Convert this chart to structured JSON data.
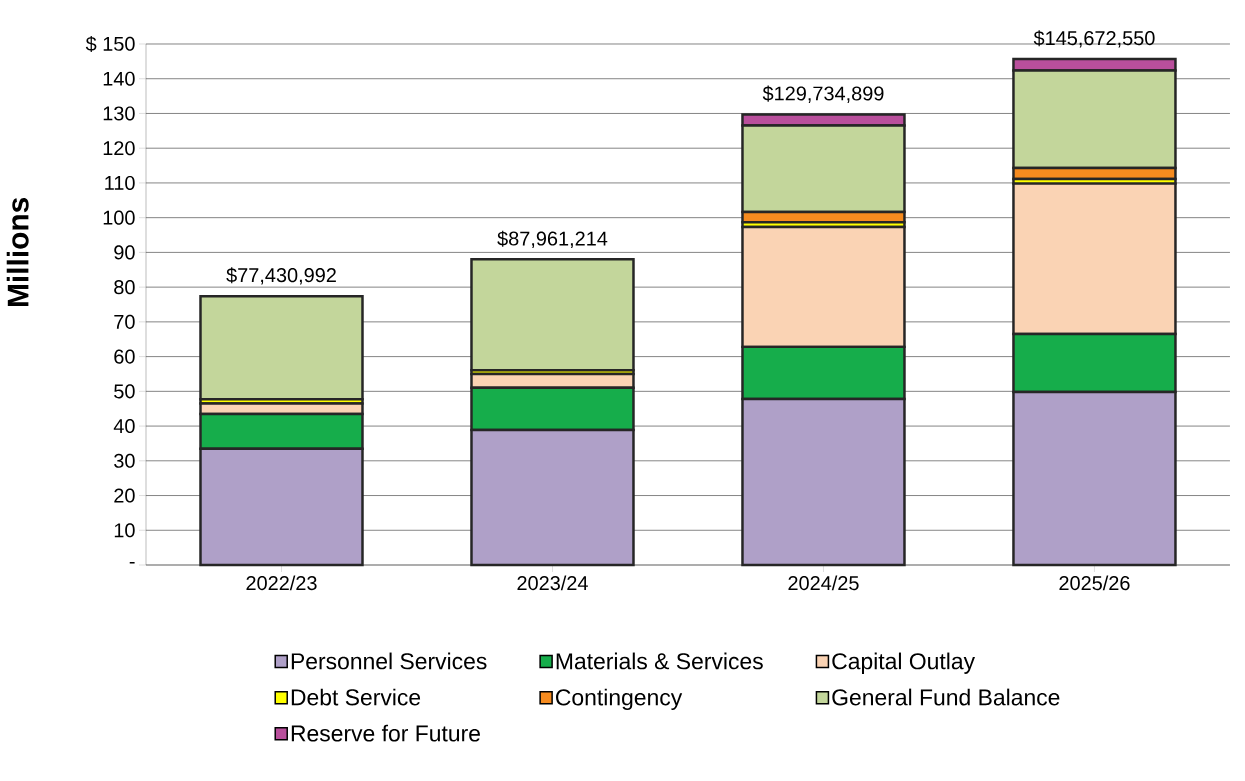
{
  "chart_data": {
    "type": "bar",
    "stacked": true,
    "ylabel": "Millions",
    "categories": [
      "2022/23",
      "2023/24",
      "2024/25",
      "2025/26"
    ],
    "series": [
      {
        "name": "Personnel Services",
        "color": "#afa0c8",
        "values": [
          33.5,
          38.9,
          47.8,
          49.8
        ]
      },
      {
        "name": "Materials & Services",
        "color": "#16ad4b",
        "values": [
          10.0,
          12.1,
          15.0,
          16.7
        ]
      },
      {
        "name": "Capital Outlay",
        "color": "#fad3b4",
        "values": [
          3.0,
          4.0,
          34.5,
          43.3
        ]
      },
      {
        "name": "Debt Service",
        "color": "#ffff00",
        "values": [
          1.2,
          1.1,
          1.4,
          1.3
        ]
      },
      {
        "name": "Contingency",
        "color": "#f68b1f",
        "values": [
          null,
          null,
          2.9,
          3.2
        ]
      },
      {
        "name": "General Fund Balance",
        "color": "#c3d69b",
        "values": [
          29.7,
          31.9,
          24.9,
          28.1
        ]
      },
      {
        "name": "Reserve for Future",
        "color": "#b94f9c",
        "values": [
          null,
          null,
          3.2,
          3.3
        ]
      }
    ],
    "annotations": [
      {
        "text": "$77,430,992",
        "x": "2022/23",
        "y": 77.43
      },
      {
        "text": "$87,961,214",
        "x": "2023/24",
        "y": 87.96
      },
      {
        "text": "$129,734,899",
        "x": "2024/25",
        "y": 129.73
      },
      {
        "text": "$145,672,550",
        "x": "2025/26",
        "y": 145.67
      }
    ],
    "ylim": [
      0,
      150
    ],
    "yticks": [
      {
        "value": 0,
        "label": "-"
      },
      10,
      20,
      30,
      40,
      50,
      60,
      70,
      80,
      90,
      100,
      110,
      120,
      130,
      140,
      {
        "value": 150,
        "label": "$ 150"
      }
    ],
    "grid": "y",
    "legend": "bottom"
  }
}
